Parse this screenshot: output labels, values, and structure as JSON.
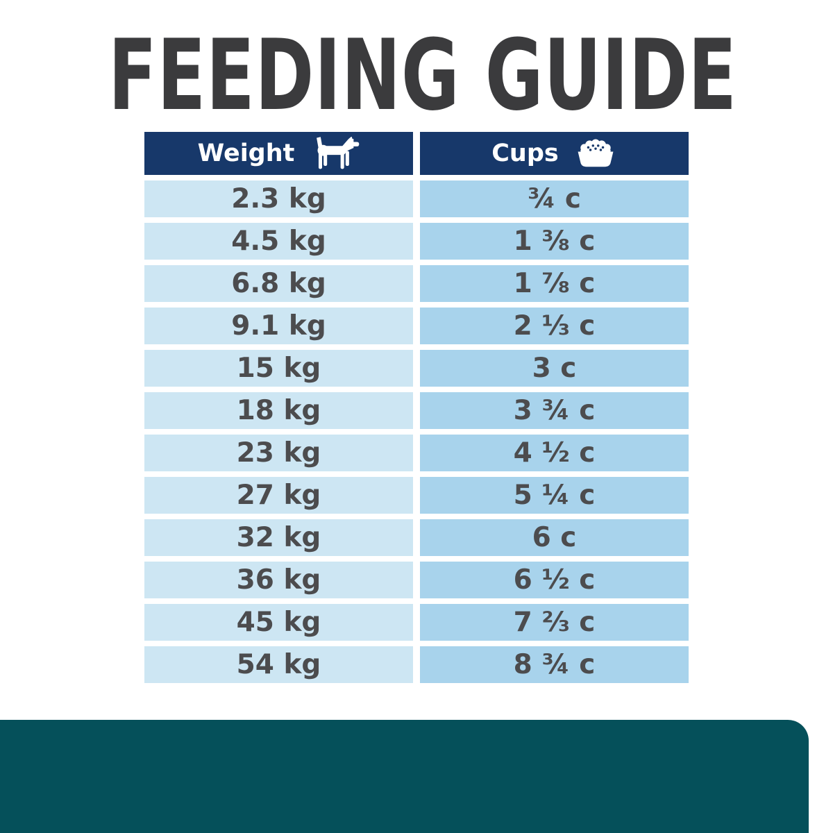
{
  "page": {
    "title": "FEEDING GUIDE"
  },
  "colors": {
    "title_text": "#3b3b3d",
    "header_bg": "#17386a",
    "header_text": "#ffffff",
    "cell_left_bg": "#cde6f3",
    "cell_right_bg": "#a8d3ec",
    "cell_text": "#4c4c4e",
    "footer_bar": "#05505a"
  },
  "table": {
    "columns": [
      {
        "label": "Weight",
        "icon": "dog-icon"
      },
      {
        "label": "Cups",
        "icon": "bowl-icon"
      }
    ],
    "rows": [
      {
        "weight": "2.3 kg",
        "cups": "¾ c"
      },
      {
        "weight": "4.5 kg",
        "cups": "1 ⅜ c"
      },
      {
        "weight": "6.8 kg",
        "cups": "1 ⅞ c"
      },
      {
        "weight": "9.1 kg",
        "cups": "2 ⅓ c"
      },
      {
        "weight": "15 kg",
        "cups": "3 c"
      },
      {
        "weight": "18 kg",
        "cups": "3 ¾ c"
      },
      {
        "weight": "23 kg",
        "cups": "4 ½ c"
      },
      {
        "weight": "27 kg",
        "cups": "5 ¼ c"
      },
      {
        "weight": "32 kg",
        "cups": "6 c"
      },
      {
        "weight": "36 kg",
        "cups": "6 ½ c"
      },
      {
        "weight": "45 kg",
        "cups": "7 ⅔ c"
      },
      {
        "weight": "54 kg",
        "cups": "8 ¾ c"
      }
    ]
  }
}
